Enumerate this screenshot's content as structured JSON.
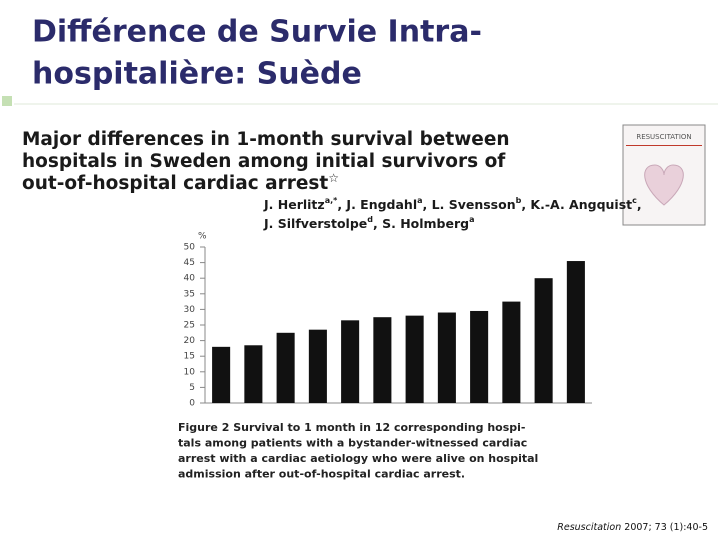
{
  "slide": {
    "title_lines": [
      "Différence de Survie Intra-",
      "hospitalière: Suède"
    ],
    "citation_journal": "Resuscitation",
    "citation_ref": " 2007; 73 (1):40-5"
  },
  "paper": {
    "title_lines": [
      "Major differences in 1-month survival between",
      "hospitals in Sweden among initial survivors of",
      "out-of-hospital cardiac arrest"
    ],
    "title_mark": "☆",
    "author_lines": [
      [
        {
          "name": "J. Herlitz",
          "sup": "a,*"
        },
        {
          "name": ", J. Engdahl",
          "sup": "a"
        },
        {
          "name": ", L. Svensson",
          "sup": "b"
        },
        {
          "name": ", K.-A. Angquist",
          "sup": "c"
        },
        {
          "name": ","
        }
      ],
      [
        {
          "name": "J. Silfverstolpe",
          "sup": "d"
        },
        {
          "name": ", S. Holmberg",
          "sup": "a"
        }
      ]
    ],
    "journal_cover": "RESUSCITATION",
    "caption_lines": [
      "Figure 2   Survival to 1 month in 12 corresponding hospi-",
      "tals among patients with a bystander-witnessed cardiac",
      "arrest with a cardiac aetiology who were alive on hospital",
      "admission after out-of-hospital cardiac arrest."
    ]
  },
  "chart_data": {
    "type": "bar",
    "ylabel": "%",
    "categories": [
      null,
      null,
      null,
      null,
      null,
      null,
      null,
      null,
      null,
      null,
      null,
      null
    ],
    "values": [
      18,
      18.5,
      22.5,
      23.5,
      26.5,
      27.5,
      28,
      29,
      29.5,
      32.5,
      40,
      45.5
    ],
    "color": "#111111",
    "ylim": [
      0,
      50
    ],
    "yticks": [
      0,
      5,
      10,
      15,
      20,
      25,
      30,
      35,
      40,
      45,
      50
    ],
    "grid": false
  }
}
